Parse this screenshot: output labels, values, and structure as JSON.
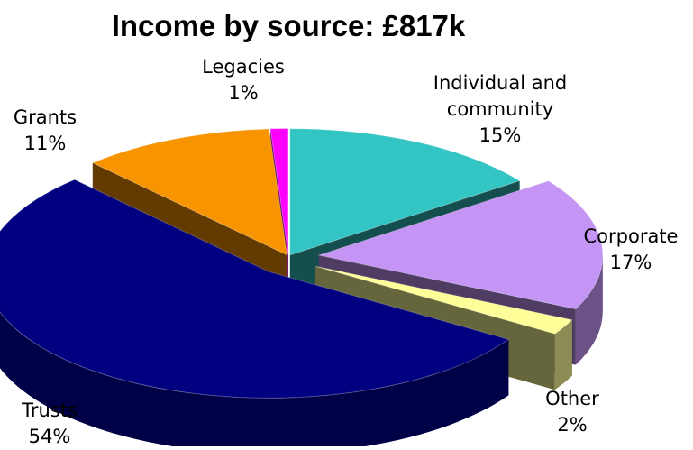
{
  "chart_data": {
    "type": "pie",
    "title": "Income by source: £817k",
    "slices": [
      {
        "label": "Individual and community",
        "label_lines": [
          "Individual and",
          "community"
        ],
        "percent_label": "15%",
        "value": 15,
        "color": "#33C4C4",
        "exploded": false
      },
      {
        "label": "Corporate",
        "label_lines": [
          "Corporate"
        ],
        "percent_label": "17%",
        "value": 17,
        "color": "#C495F5",
        "exploded": true
      },
      {
        "label": "Other",
        "label_lines": [
          "Other"
        ],
        "percent_label": "2%",
        "value": 2,
        "color": "#FFFF99",
        "exploded": true
      },
      {
        "label": "Trusts",
        "label_lines": [
          "Trusts"
        ],
        "percent_label": "54%",
        "value": 54,
        "color": "#000080",
        "exploded": true
      },
      {
        "label": "Grants",
        "label_lines": [
          "Grants"
        ],
        "percent_label": "11%",
        "value": 11,
        "color": "#F79400",
        "exploded": false
      },
      {
        "label": "Legacies",
        "label_lines": [
          "Legacies"
        ],
        "percent_label": "1%",
        "value": 1,
        "color": "#FF00FF",
        "exploded": false
      }
    ],
    "style": "3d-exploded"
  }
}
